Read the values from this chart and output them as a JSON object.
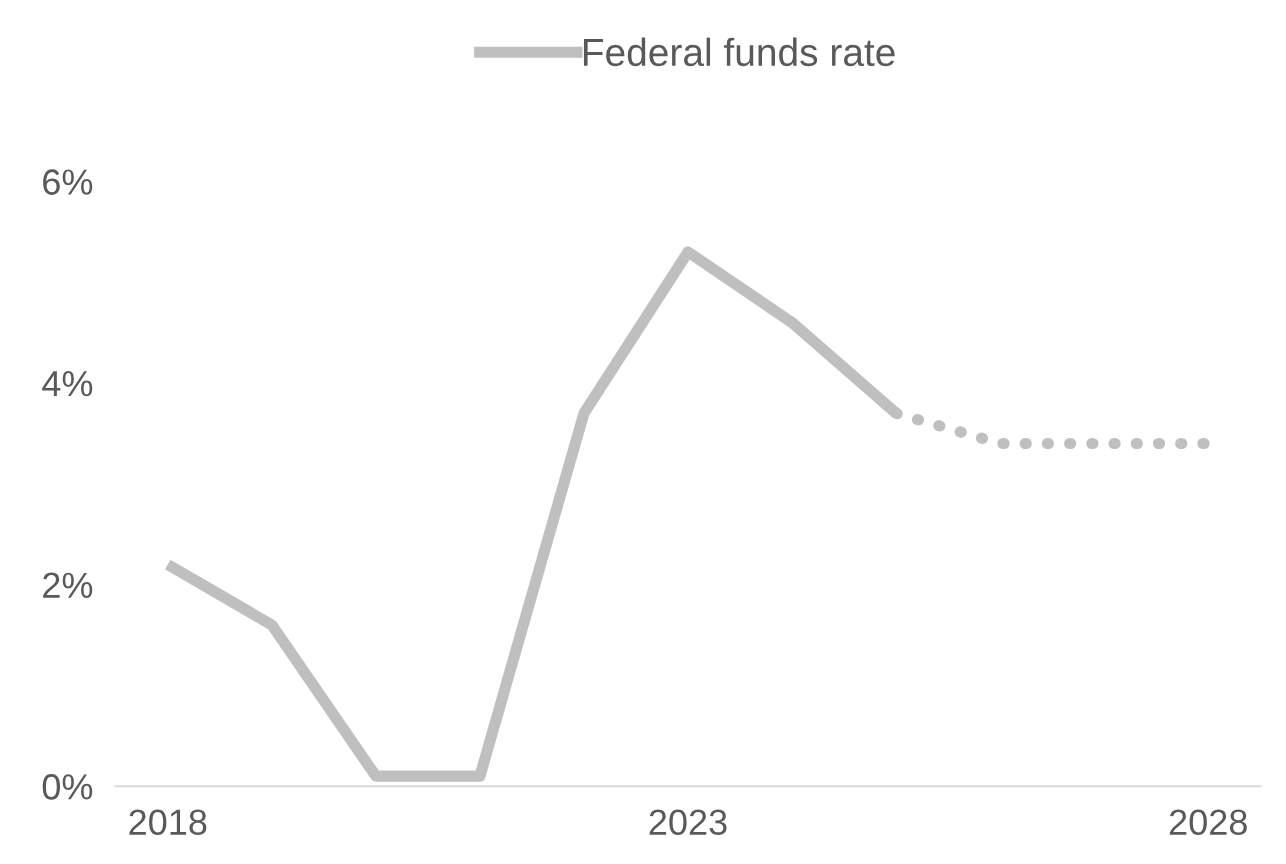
{
  "chart_data": {
    "type": "line",
    "x": [
      2018,
      2019,
      2020,
      2021,
      2022,
      2023,
      2024,
      2025
    ],
    "series": [
      {
        "name": "Federal funds rate",
        "color": "#bfbfbf",
        "values": [
          2.2,
          1.6,
          0.1,
          0.1,
          3.7,
          5.3,
          4.6,
          3.7
        ],
        "line_style": "solid"
      },
      {
        "color": "#bfbfbf",
        "x": [
          2025,
          2026,
          2027,
          2028
        ],
        "values": [
          3.7,
          3.4,
          3.4,
          3.4
        ],
        "line_style": "dotted"
      }
    ],
    "xlim": [
      2017.5,
      2028.5
    ],
    "xticks": [
      2018,
      2023,
      2028
    ],
    "ylim": [
      0,
      6
    ],
    "yticks": [
      {
        "value": 0,
        "label": "0%"
      },
      {
        "value": 2,
        "label": "2%"
      },
      {
        "value": 4,
        "label": "4%"
      },
      {
        "value": 6,
        "label": "6%"
      }
    ],
    "grid": false,
    "legend": "top",
    "marker": "none"
  }
}
